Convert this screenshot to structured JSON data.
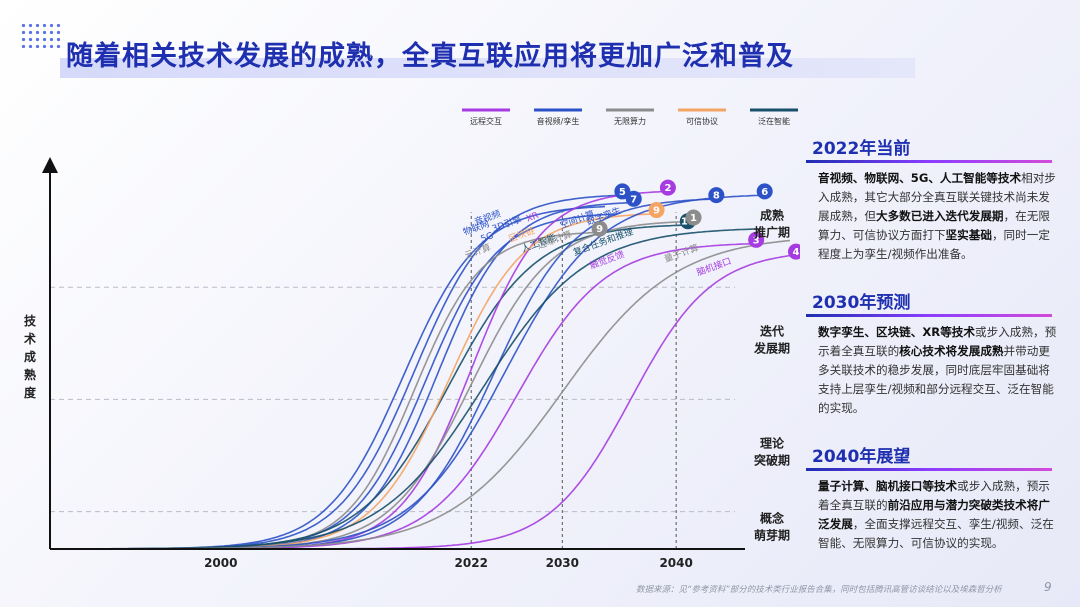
{
  "title": "随着相关技术发展的成熟，全真互联应用将更加广泛和普及",
  "chart_data": {
    "type": "line",
    "title": "",
    "ylabel": "技术成熟度",
    "x_ticks": [
      2000,
      2022,
      2030,
      2040
    ],
    "x_tick_labels": [
      "2000",
      "2022",
      "2030",
      "2040"
    ],
    "xlim": [
      1985,
      2050
    ],
    "ylim": [
      0,
      100
    ],
    "stage_levels": [
      10,
      40,
      70
    ],
    "stages": [
      {
        "label_line1": "概念",
        "label_line2": "萌芽期",
        "y": 5
      },
      {
        "label_line1": "理论",
        "label_line2": "突破期",
        "y": 25
      },
      {
        "label_line1": "迭代",
        "label_line2": "发展期",
        "y": 55
      },
      {
        "label_line1": "成熟",
        "label_line2": "推广期",
        "y": 86
      }
    ],
    "legend": [
      {
        "name": "远程交互",
        "color": "#a53be0"
      },
      {
        "name": "音视频/孪生",
        "color": "#2d52c7"
      },
      {
        "name": "无限算力",
        "color": "#8c8c8c"
      },
      {
        "name": "可信协议",
        "color": "#f4a463"
      },
      {
        "name": "泛在智能",
        "color": "#17506a"
      }
    ],
    "series": [
      {
        "name": "物联网",
        "group": "音视频/孪生",
        "mid": 2016,
        "k": 0.3,
        "top": 92,
        "label": "物联网",
        "badge": ""
      },
      {
        "name": "音视频",
        "group": "音视频/孪生",
        "mid": 2017,
        "k": 0.3,
        "top": 95,
        "label": "音视频",
        "badge": "5"
      },
      {
        "name": "5G",
        "group": "音视频/孪生",
        "mid": 2018,
        "k": 0.32,
        "top": 90,
        "label": "5G",
        "badge": ""
      },
      {
        "name": "3D引擎",
        "group": "音视频/孪生",
        "mid": 2019,
        "k": 0.32,
        "top": 93,
        "label": "3D引擎",
        "badge": "7"
      },
      {
        "name": "云计算",
        "group": "无限算力",
        "mid": 2017,
        "k": 0.34,
        "top": 85,
        "label": "云计算",
        "badge": "9"
      },
      {
        "name": "人工智能",
        "group": "泛在智能",
        "mid": 2020,
        "k": 0.26,
        "top": 87,
        "label": "人工智能",
        "badge": "11"
      },
      {
        "name": "XR",
        "group": "远程交互",
        "mid": 2022,
        "k": 0.32,
        "top": 96,
        "label": "XR",
        "badge": "2"
      },
      {
        "name": "区块链",
        "group": "可信协议",
        "mid": 2020,
        "k": 0.3,
        "top": 90,
        "label": "区块链",
        "badge": "9"
      },
      {
        "name": "边缘计算",
        "group": "无限算力",
        "mid": 2022,
        "k": 0.28,
        "top": 88,
        "label": "边缘计算",
        "badge": "1"
      },
      {
        "name": "空间计算",
        "group": "音视频/孪生",
        "mid": 2024,
        "k": 0.28,
        "top": 94,
        "label": "空间计算",
        "badge": "8"
      },
      {
        "name": "数字孪生",
        "group": "音视频/孪生",
        "mid": 2025,
        "k": 0.24,
        "top": 95,
        "label": "数字孪生",
        "badge": "6"
      },
      {
        "name": "触觉反馈",
        "group": "远程交互",
        "mid": 2026,
        "k": 0.26,
        "top": 82,
        "label": "触觉反馈",
        "badge": "3"
      },
      {
        "name": "复合任务和推理",
        "group": "泛在智能",
        "mid": 2023,
        "k": 0.22,
        "top": 86,
        "label": "复合任务和推理",
        "badge": ""
      },
      {
        "name": "量子计算",
        "group": "无限算力",
        "mid": 2030,
        "k": 0.2,
        "top": 84,
        "label": "量子计算",
        "badge": ""
      },
      {
        "name": "脑机接口",
        "group": "远程交互",
        "mid": 2036,
        "k": 0.28,
        "top": 80,
        "label": "脑机接口",
        "badge": "4"
      }
    ]
  },
  "panels": [
    {
      "heading": "2022年当前",
      "parts": [
        {
          "t": "音视频、物联网、5G、人工智能等技术",
          "b": true
        },
        {
          "t": "相对步入成熟，其它大部分全真互联关键技术尚未发展成熟，但",
          "b": false
        },
        {
          "t": "大多数已进入迭代发展期",
          "b": true
        },
        {
          "t": "，在无限算力、可信协议方面打下",
          "b": false
        },
        {
          "t": "坚实基础",
          "b": true
        },
        {
          "t": "，同时一定程度上为孪生/视频作出准备。",
          "b": false
        }
      ]
    },
    {
      "heading": "2030年预测",
      "parts": [
        {
          "t": "数字孪生、区块链、XR等技术",
          "b": true
        },
        {
          "t": "或步入成熟，预示着全真互联的",
          "b": false
        },
        {
          "t": "核心技术将发展成熟",
          "b": true
        },
        {
          "t": "并带动更多关联技术的稳步发展，同时底层牢固基础将支持上层孪生/视频和部分远程交互、泛在智能的实现。",
          "b": false
        }
      ]
    },
    {
      "heading": "2040年展望",
      "parts": [
        {
          "t": "量子计算、脑机接口等技术",
          "b": true
        },
        {
          "t": "或步入成熟，预示着全真互联的",
          "b": false
        },
        {
          "t": "前沿应用与潜力突破类技术将广泛发展",
          "b": true
        },
        {
          "t": "，全面支撑远程交互、孪生/视频、泛在智能、无限算力、可信协议的实现。",
          "b": false
        }
      ]
    }
  ],
  "footer": "数据来源：见“参考资料”部分的技术类行业报告合集，同时包括腾讯高管访谈结论以及埃森哲分析",
  "page_number": "9"
}
